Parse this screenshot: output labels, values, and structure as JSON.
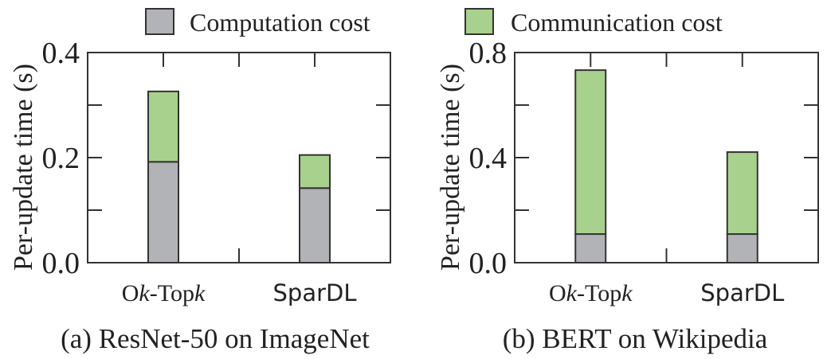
{
  "legend": [
    {
      "label": "Computation cost",
      "color": "#b2b3b6"
    },
    {
      "label": "Communication cost",
      "color": "#a8d18d"
    }
  ],
  "chart_data": [
    {
      "type": "bar",
      "stacked": true,
      "title": "(a) ResNet-50 on ImageNet",
      "ylabel": "Per-update time (s)",
      "xlabel": "",
      "categories": [
        "Ok-Topk",
        "SparDL"
      ],
      "ylim": [
        0,
        0.4
      ],
      "yticks": [
        "0.0",
        "0.2",
        "0.4"
      ],
      "series": [
        {
          "name": "Computation cost",
          "values": [
            0.192,
            0.142
          ]
        },
        {
          "name": "Communication cost",
          "values": [
            0.134,
            0.063
          ]
        }
      ]
    },
    {
      "type": "bar",
      "stacked": true,
      "title": "(b) BERT on Wikipedia",
      "ylabel": "Per-update time (s)",
      "xlabel": "",
      "categories": [
        "Ok-Topk",
        "SparDL"
      ],
      "ylim": [
        0,
        0.8
      ],
      "yticks": [
        "0.0",
        "0.4",
        "0.8"
      ],
      "series": [
        {
          "name": "Computation cost",
          "values": [
            0.109,
            0.109
          ]
        },
        {
          "name": "Communication cost",
          "values": [
            0.624,
            0.312
          ]
        }
      ]
    }
  ]
}
